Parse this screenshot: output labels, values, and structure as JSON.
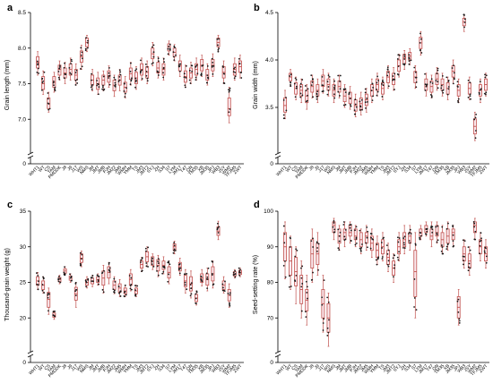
{
  "colors": {
    "box_edge": "#c0504d",
    "box_fill": "#fbe9ee",
    "dot": "#1a1a1a",
    "axis": "#000000"
  },
  "categories": [
    "WHT1",
    "WT",
    "CS",
    "TAM",
    "PMDDK",
    "J8",
    "J9",
    "J17",
    "WS",
    "NMS",
    "JM",
    "JMT",
    "JMB",
    "PJH",
    "JM22",
    "JM5",
    "WMH",
    "YMM",
    "TS",
    "JM3",
    "JMT2",
    "SYJ",
    "ZH",
    "S34",
    "S7",
    "LYM",
    "JM17",
    "T47",
    "QN",
    "TM35",
    "XB",
    "JM35",
    "JPJ",
    "WB3",
    "JSY",
    "WM2",
    "TFJM5",
    "ZWT"
  ],
  "chart_data": [
    {
      "type": "box",
      "panel_letter": "a",
      "ylabel": "Grain length (mm)",
      "ylim": [
        6.5,
        8.5
      ],
      "yticks": [
        "0",
        "7.0",
        "7.5",
        "8.0",
        "8.5"
      ],
      "axis_break": true,
      "boxes": [
        [
          7.62,
          7.72,
          7.8,
          7.88,
          7.95
        ],
        [
          7.35,
          7.42,
          7.5,
          7.6,
          7.68
        ],
        [
          7.1,
          7.15,
          7.22,
          7.3,
          7.38
        ],
        [
          7.38,
          7.45,
          7.52,
          7.6,
          7.66
        ],
        [
          7.55,
          7.62,
          7.7,
          7.76,
          7.82
        ],
        [
          7.5,
          7.58,
          7.65,
          7.72,
          7.8
        ],
        [
          7.55,
          7.62,
          7.7,
          7.78,
          7.86
        ],
        [
          7.48,
          7.55,
          7.62,
          7.7,
          7.78
        ],
        [
          7.7,
          7.8,
          7.88,
          7.96,
          8.04
        ],
        [
          7.95,
          8.02,
          8.08,
          8.14,
          8.18
        ],
        [
          7.4,
          7.48,
          7.55,
          7.62,
          7.7
        ],
        [
          7.35,
          7.42,
          7.5,
          7.58,
          7.66
        ],
        [
          7.4,
          7.48,
          7.55,
          7.62,
          7.68
        ],
        [
          7.45,
          7.52,
          7.6,
          7.68,
          7.75
        ],
        [
          7.32,
          7.4,
          7.48,
          7.55,
          7.62
        ],
        [
          7.4,
          7.48,
          7.55,
          7.62,
          7.7
        ],
        [
          7.3,
          7.38,
          7.45,
          7.52,
          7.6
        ],
        [
          7.48,
          7.56,
          7.64,
          7.72,
          7.8
        ],
        [
          7.42,
          7.5,
          7.58,
          7.66,
          7.74
        ],
        [
          7.55,
          7.62,
          7.7,
          7.78,
          7.86
        ],
        [
          7.5,
          7.58,
          7.66,
          7.74,
          7.82
        ],
        [
          7.75,
          7.85,
          7.92,
          8.0,
          8.08
        ],
        [
          7.58,
          7.65,
          7.72,
          7.8,
          7.88
        ],
        [
          7.55,
          7.62,
          7.7,
          7.78,
          7.86
        ],
        [
          7.9,
          7.96,
          8.02,
          8.06,
          8.1
        ],
        [
          7.82,
          7.88,
          7.94,
          8.0,
          8.05
        ],
        [
          7.6,
          7.68,
          7.75,
          7.82,
          7.9
        ],
        [
          7.45,
          7.52,
          7.6,
          7.68,
          7.76
        ],
        [
          7.5,
          7.58,
          7.65,
          7.72,
          7.8
        ],
        [
          7.55,
          7.62,
          7.7,
          7.78,
          7.86
        ],
        [
          7.6,
          7.68,
          7.76,
          7.84,
          7.9
        ],
        [
          7.48,
          7.55,
          7.62,
          7.7,
          7.78
        ],
        [
          7.6,
          7.68,
          7.76,
          7.84,
          7.92
        ],
        [
          7.95,
          8.02,
          8.08,
          8.14,
          8.18
        ],
        [
          7.5,
          7.58,
          7.66,
          7.74,
          7.82
        ],
        [
          6.95,
          7.05,
          7.15,
          7.3,
          7.45
        ],
        [
          7.55,
          7.62,
          7.7,
          7.78,
          7.86
        ],
        [
          7.58,
          7.66,
          7.74,
          7.82,
          7.9
        ]
      ]
    },
    {
      "type": "box",
      "panel_letter": "b",
      "ylabel": "Grain width (mm)",
      "ylim": [
        3.0,
        4.5
      ],
      "yticks": [
        "0",
        "3.5",
        "4.0",
        "4.5"
      ],
      "axis_break": true,
      "boxes": [
        [
          3.38,
          3.45,
          3.52,
          3.6,
          3.68
        ],
        [
          3.72,
          3.78,
          3.82,
          3.86,
          3.9
        ],
        [
          3.58,
          3.64,
          3.7,
          3.76,
          3.82
        ],
        [
          3.55,
          3.62,
          3.68,
          3.74,
          3.8
        ],
        [
          3.48,
          3.55,
          3.62,
          3.68,
          3.74
        ],
        [
          3.6,
          3.66,
          3.72,
          3.78,
          3.84
        ],
        [
          3.55,
          3.62,
          3.68,
          3.74,
          3.8
        ],
        [
          3.65,
          3.72,
          3.78,
          3.84,
          3.9
        ],
        [
          3.62,
          3.68,
          3.74,
          3.8,
          3.86
        ],
        [
          3.55,
          3.62,
          3.68,
          3.74,
          3.8
        ],
        [
          3.6,
          3.66,
          3.72,
          3.78,
          3.84
        ],
        [
          3.5,
          3.56,
          3.62,
          3.68,
          3.74
        ],
        [
          3.48,
          3.54,
          3.6,
          3.66,
          3.72
        ],
        [
          3.4,
          3.46,
          3.52,
          3.58,
          3.64
        ],
        [
          3.42,
          3.48,
          3.54,
          3.6,
          3.66
        ],
        [
          3.45,
          3.52,
          3.58,
          3.64,
          3.7
        ],
        [
          3.55,
          3.62,
          3.68,
          3.74,
          3.8
        ],
        [
          3.62,
          3.68,
          3.74,
          3.8,
          3.86
        ],
        [
          3.58,
          3.64,
          3.7,
          3.76,
          3.82
        ],
        [
          3.7,
          3.76,
          3.82,
          3.88,
          3.94
        ],
        [
          3.68,
          3.74,
          3.8,
          3.86,
          3.92
        ],
        [
          3.82,
          3.88,
          3.94,
          4.0,
          4.06
        ],
        [
          3.9,
          3.96,
          4.02,
          4.06,
          4.1
        ],
        [
          3.95,
          4.0,
          4.04,
          4.08,
          4.12
        ],
        [
          3.7,
          3.76,
          3.82,
          3.88,
          3.94
        ],
        [
          4.05,
          4.12,
          4.18,
          4.24,
          4.3
        ],
        [
          3.62,
          3.68,
          3.74,
          3.8,
          3.86
        ],
        [
          3.6,
          3.66,
          3.72,
          3.78,
          3.84
        ],
        [
          3.68,
          3.74,
          3.8,
          3.86,
          3.92
        ],
        [
          3.62,
          3.68,
          3.74,
          3.8,
          3.86
        ],
        [
          3.58,
          3.64,
          3.7,
          3.76,
          3.82
        ],
        [
          3.75,
          3.82,
          3.88,
          3.94,
          4.0
        ],
        [
          3.55,
          3.62,
          3.68,
          3.74,
          3.8
        ],
        [
          4.3,
          4.36,
          4.4,
          4.44,
          4.48
        ],
        [
          3.58,
          3.64,
          3.7,
          3.76,
          3.82
        ],
        [
          3.15,
          3.22,
          3.3,
          3.38,
          3.45
        ],
        [
          3.55,
          3.62,
          3.68,
          3.74,
          3.8
        ],
        [
          3.62,
          3.68,
          3.74,
          3.8,
          3.86
        ]
      ]
    },
    {
      "type": "box",
      "panel_letter": "c",
      "ylabel": "Thousand-grain weight (g)",
      "ylim": [
        15,
        35
      ],
      "yticks": [
        "0",
        "20",
        "25",
        "30",
        "35"
      ],
      "axis_break": true,
      "boxes": [
        [
          24.0,
          24.6,
          25.2,
          25.8,
          26.4
        ],
        [
          23.5,
          24.0,
          24.6,
          25.2,
          25.8
        ],
        [
          20.5,
          21.5,
          22.6,
          23.6,
          24.2
        ],
        [
          19.8,
          20.1,
          20.4,
          20.7,
          21.0
        ],
        [
          24.8,
          25.1,
          25.4,
          25.7,
          26.0
        ],
        [
          26.0,
          26.3,
          26.6,
          26.9,
          27.2
        ],
        [
          25.0,
          25.3,
          25.6,
          25.9,
          26.2
        ],
        [
          21.5,
          22.5,
          23.4,
          24.3,
          25.0
        ],
        [
          27.2,
          27.8,
          28.4,
          29.0,
          29.4
        ],
        [
          24.2,
          24.6,
          25.0,
          25.4,
          25.8
        ],
        [
          24.4,
          24.8,
          25.2,
          25.6,
          26.0
        ],
        [
          24.6,
          25.0,
          25.4,
          25.8,
          26.2
        ],
        [
          23.5,
          24.6,
          25.6,
          26.6,
          27.4
        ],
        [
          24.8,
          25.6,
          26.4,
          27.2,
          27.8
        ],
        [
          23.4,
          24.0,
          24.6,
          25.2,
          25.8
        ],
        [
          23.0,
          23.6,
          24.2,
          24.8,
          25.4
        ],
        [
          23.0,
          23.4,
          23.8,
          24.2,
          24.6
        ],
        [
          23.8,
          24.6,
          25.4,
          26.2,
          26.8
        ],
        [
          23.0,
          23.4,
          23.8,
          24.2,
          24.6
        ],
        [
          26.5,
          27.0,
          27.5,
          28.0,
          28.5
        ],
        [
          27.2,
          27.9,
          28.6,
          29.3,
          30.0
        ],
        [
          26.8,
          27.4,
          28.0,
          28.6,
          29.0
        ],
        [
          25.8,
          26.6,
          27.4,
          28.2,
          28.8
        ],
        [
          26.2,
          26.8,
          27.4,
          28.0,
          28.6
        ],
        [
          24.8,
          25.6,
          26.4,
          27.2,
          28.0
        ],
        [
          29.0,
          29.5,
          30.0,
          30.4,
          30.8
        ],
        [
          26.0,
          26.6,
          27.2,
          27.8,
          28.4
        ],
        [
          23.5,
          24.4,
          25.2,
          26.0,
          26.8
        ],
        [
          22.8,
          23.8,
          24.8,
          25.8,
          26.6
        ],
        [
          21.8,
          22.3,
          22.8,
          23.3,
          23.8
        ],
        [
          24.5,
          25.0,
          25.6,
          26.2,
          26.8
        ],
        [
          23.8,
          24.6,
          25.4,
          26.2,
          27.0
        ],
        [
          24.2,
          25.2,
          26.2,
          27.2,
          28.0
        ],
        [
          31.0,
          31.6,
          32.2,
          32.8,
          33.6
        ],
        [
          23.5,
          24.0,
          24.6,
          25.2,
          25.8
        ],
        [
          21.5,
          22.4,
          23.2,
          24.0,
          24.8
        ],
        [
          25.6,
          25.9,
          26.2,
          26.5,
          26.8
        ],
        [
          25.8,
          26.1,
          26.4,
          26.7,
          27.0
        ]
      ]
    },
    {
      "type": "box",
      "panel_letter": "d",
      "ylabel": "Seed-setting rate (%)",
      "ylim": [
        60,
        100
      ],
      "yticks": [
        "0",
        "70",
        "80",
        "90",
        "100"
      ],
      "axis_break": true,
      "boxes": [
        [
          81,
          86,
          90,
          94,
          97
        ],
        [
          78,
          82,
          86,
          90,
          93
        ],
        [
          74,
          79,
          83,
          87,
          90
        ],
        [
          70,
          74,
          78,
          82,
          86
        ],
        [
          68,
          72,
          75,
          78,
          82
        ],
        [
          80,
          84,
          88,
          92,
          95
        ],
        [
          82,
          85,
          88,
          91,
          94
        ],
        [
          66,
          70,
          74,
          78,
          82
        ],
        [
          62,
          66,
          70,
          74,
          77
        ],
        [
          92,
          94,
          96,
          97,
          98
        ],
        [
          89,
          91,
          93,
          95,
          96
        ],
        [
          90,
          92,
          94,
          95,
          97
        ],
        [
          91,
          93,
          94,
          96,
          97
        ],
        [
          90,
          92,
          93,
          95,
          96
        ],
        [
          88,
          90,
          92,
          94,
          95
        ],
        [
          89,
          91,
          93,
          94,
          96
        ],
        [
          87,
          89,
          91,
          93,
          95
        ],
        [
          85,
          87,
          89,
          91,
          93
        ],
        [
          86,
          88,
          90,
          92,
          94
        ],
        [
          83,
          85,
          87,
          89,
          91
        ],
        [
          80,
          82,
          84,
          86,
          88
        ],
        [
          86,
          88,
          90,
          92,
          94
        ],
        [
          88,
          90,
          92,
          94,
          96
        ],
        [
          89,
          91,
          93,
          94,
          96
        ],
        [
          70,
          76,
          83,
          89,
          94
        ],
        [
          92,
          93,
          94,
          95,
          96
        ],
        [
          93,
          94,
          95,
          96,
          97
        ],
        [
          90,
          92,
          93,
          95,
          97
        ],
        [
          91,
          93,
          94,
          96,
          97
        ],
        [
          88,
          90,
          92,
          94,
          96
        ],
        [
          89,
          91,
          93,
          95,
          97
        ],
        [
          90,
          92,
          94,
          95,
          96
        ],
        [
          68,
          70,
          73,
          76,
          78
        ],
        [
          84,
          86,
          88,
          90,
          92
        ],
        [
          82,
          84,
          86,
          88,
          90
        ],
        [
          92,
          94,
          96,
          97,
          98
        ],
        [
          86,
          88,
          90,
          92,
          94
        ],
        [
          84,
          86,
          88,
          90,
          92
        ]
      ]
    }
  ]
}
